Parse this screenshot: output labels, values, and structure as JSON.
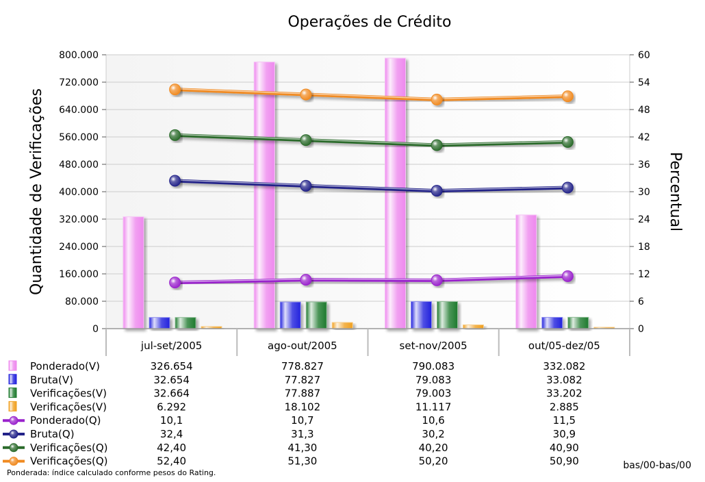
{
  "chart_data": {
    "type": "bar",
    "title": "Operações de Crédito",
    "ylabel_left": "Quantidade de Verificações",
    "ylabel_right": "Percentual",
    "categories": [
      "jul-set/2005",
      "ago-out/2005",
      "set-nov/2005",
      "out/05-dez/05"
    ],
    "ylim_left": [
      0,
      800000
    ],
    "ylim_right": [
      0,
      60
    ],
    "yticks_left": [
      "0",
      "80.000",
      "160.000",
      "240.000",
      "320.000",
      "400.000",
      "480.000",
      "560.000",
      "640.000",
      "720.000",
      "800.000"
    ],
    "yticks_right": [
      "0",
      "6",
      "12",
      "18",
      "24",
      "30",
      "36",
      "42",
      "48",
      "54",
      "60"
    ],
    "grid": true,
    "legend_placement": "data table below chart",
    "bar_series": [
      {
        "name": "Ponderado(V)",
        "color": "#ee88ee",
        "values": [
          326654,
          778827,
          790083,
          332082
        ],
        "labels": [
          "326.654",
          "778.827",
          "790.083",
          "332.082"
        ]
      },
      {
        "name": "Bruta(V)",
        "color": "#2222dd",
        "values": [
          32654,
          77827,
          79083,
          33082
        ],
        "labels": [
          "32.654",
          "77.827",
          "79.083",
          "33.082"
        ]
      },
      {
        "name": "Verificações(V)",
        "color": "#1e7a2e",
        "values": [
          32664,
          77887,
          79003,
          33202
        ],
        "labels": [
          "32.664",
          "77.887",
          "79.003",
          "33.202"
        ]
      },
      {
        "name": "Verificações(V)",
        "color": "#f0a020",
        "values": [
          6292,
          18102,
          11117,
          2885
        ],
        "labels": [
          "6.292",
          "18.102",
          "11.117",
          "2.885"
        ]
      }
    ],
    "line_series": [
      {
        "name": "Ponderado(Q)",
        "color": "#9922cc",
        "values": [
          10.1,
          10.7,
          10.6,
          11.5
        ],
        "labels": [
          "10,1",
          "10,7",
          "10,6",
          "11,5"
        ]
      },
      {
        "name": "Bruta(Q)",
        "color": "#222288",
        "values": [
          32.4,
          31.3,
          30.2,
          30.9
        ],
        "labels": [
          "32,4",
          "31,3",
          "30,2",
          "30,9"
        ]
      },
      {
        "name": "Verificações(Q)",
        "color": "#2a6a2a",
        "values": [
          42.4,
          41.3,
          40.2,
          40.9
        ],
        "labels": [
          "42,40",
          "41,30",
          "40,20",
          "40,90"
        ]
      },
      {
        "name": "Verificações(Q)",
        "color": "#f08a20",
        "values": [
          52.4,
          51.3,
          50.2,
          50.9
        ],
        "labels": [
          "52,40",
          "51,30",
          "50,20",
          "50,90"
        ]
      }
    ],
    "annotations": {
      "footnote": "Ponderada: índice calculado conforme pesos do Rating.",
      "corner_note": "bas/00-bas/00"
    }
  }
}
